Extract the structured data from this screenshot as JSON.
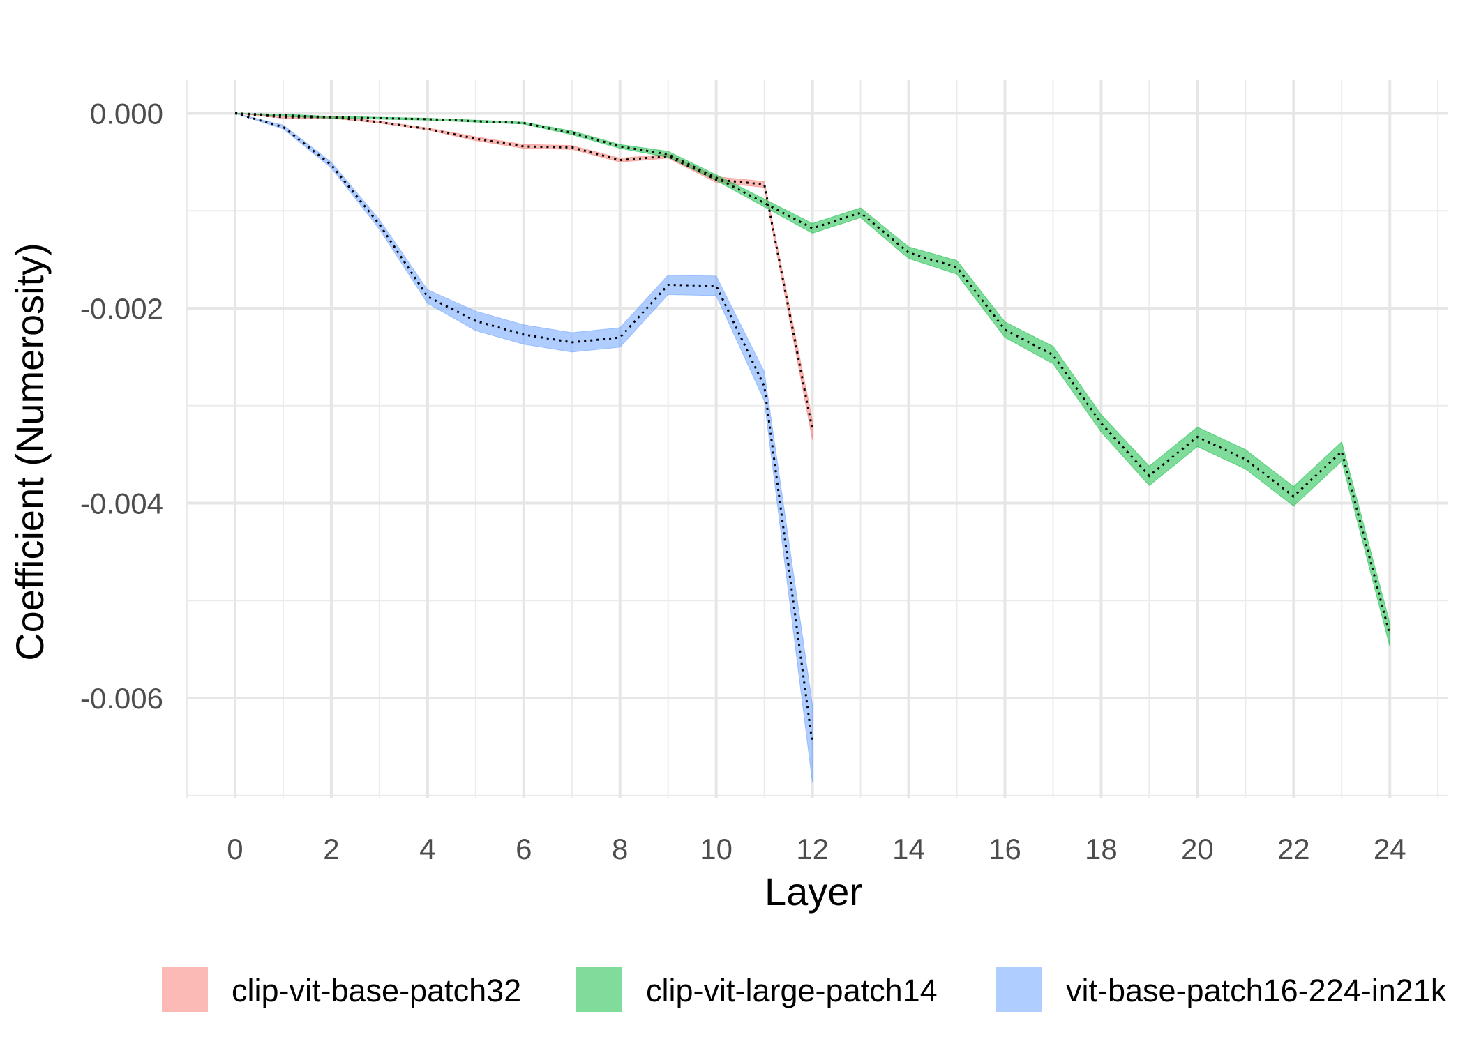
{
  "chart_data": {
    "type": "line",
    "xlabel": "Layer",
    "ylabel": "Coefficient (Numerosity)",
    "xlim": [
      -1,
      25.2
    ],
    "ylim": [
      -0.00703,
      0.00034
    ],
    "x_ticks": [
      0,
      2,
      4,
      6,
      8,
      10,
      12,
      14,
      16,
      18,
      20,
      22,
      24
    ],
    "x_tick_labels": [
      "0",
      "2",
      "4",
      "6",
      "8",
      "10",
      "12",
      "14",
      "16",
      "18",
      "20",
      "22",
      "24"
    ],
    "y_ticks": [
      0.0,
      -0.002,
      -0.004,
      -0.006
    ],
    "y_tick_labels": [
      "0.000",
      "-0.002",
      "-0.004",
      "-0.006"
    ],
    "grid": true,
    "legend_position": "bottom",
    "series": [
      {
        "name": "clip-vit-base-patch32",
        "color": "#F8766D",
        "x": [
          0,
          1,
          2,
          3,
          4,
          5,
          6,
          7,
          8,
          9,
          10,
          11,
          12
        ],
        "y": [
          0.0,
          -4e-05,
          -4e-05,
          -9e-05,
          -0.00016,
          -0.00026,
          -0.00034,
          -0.00035,
          -0.00048,
          -0.00044,
          -0.00068,
          -0.00073,
          -0.00325
        ],
        "band_half_width": [
          0.0,
          1e-05,
          1e-05,
          1e-05,
          1e-05,
          2e-05,
          2e-05,
          2e-05,
          2e-05,
          2e-05,
          3e-05,
          3e-05,
          0.0001
        ]
      },
      {
        "name": "clip-vit-large-patch14",
        "color": "#00BA38",
        "x": [
          0,
          1,
          2,
          3,
          4,
          5,
          6,
          7,
          8,
          9,
          10,
          11,
          12,
          13,
          14,
          15,
          16,
          17,
          18,
          19,
          20,
          21,
          22,
          23,
          24
        ],
        "y": [
          0.0,
          -2e-05,
          -4e-05,
          -5e-05,
          -6e-05,
          -8e-05,
          -0.0001,
          -0.0002,
          -0.00034,
          -0.00042,
          -0.00066,
          -0.00092,
          -0.00118,
          -0.00102,
          -0.00143,
          -0.00158,
          -0.00222,
          -0.00248,
          -0.00318,
          -0.00372,
          -0.00332,
          -0.00355,
          -0.00393,
          -0.00347,
          -0.00535
        ],
        "band_half_width": [
          0.0,
          1e-05,
          1e-05,
          1e-05,
          1e-05,
          1e-05,
          1e-05,
          2e-05,
          2e-05,
          3e-05,
          3e-05,
          4e-05,
          5e-05,
          5e-05,
          6e-05,
          7e-05,
          8e-05,
          9e-05,
          9e-05,
          0.0001,
          0.0001,
          0.0001,
          0.0001,
          0.0001,
          0.00012
        ]
      },
      {
        "name": "vit-base-patch16-224-in21k",
        "color": "#619CFF",
        "x": [
          0,
          1,
          2,
          3,
          4,
          5,
          6,
          7,
          8,
          9,
          10,
          11,
          12
        ],
        "y": [
          0.0,
          -0.00014,
          -0.00053,
          -0.00114,
          -0.00188,
          -0.00213,
          -0.00227,
          -0.00235,
          -0.0023,
          -0.00176,
          -0.00177,
          -0.0028,
          -0.00647
        ],
        "band_half_width": [
          0.0,
          2e-05,
          3e-05,
          5e-05,
          7e-05,
          0.0001,
          0.0001,
          0.0001,
          0.0001,
          0.0001,
          0.0001,
          0.00015,
          0.0004
        ]
      }
    ]
  }
}
